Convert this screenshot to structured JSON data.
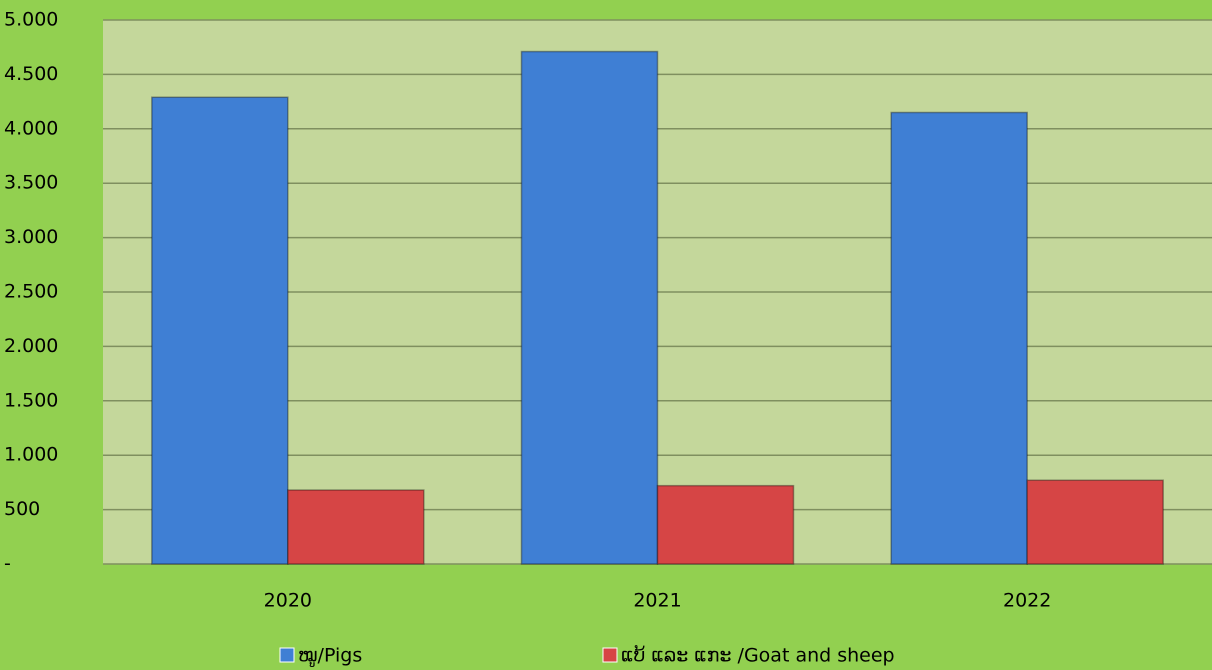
{
  "chart_data": {
    "type": "bar",
    "categories": [
      "2020",
      "2021",
      "2022"
    ],
    "series": [
      {
        "name": "ໝູ/Pigs",
        "color": "#3f7fd4",
        "values": [
          4290,
          4710,
          4150
        ]
      },
      {
        "name": "ແບ້ ແລະ ແກະ /Goat and sheep",
        "color": "#d64545",
        "values": [
          680,
          720,
          770
        ]
      }
    ],
    "ylim": [
      0,
      5000
    ],
    "yticks": [
      {
        "value": 0,
        "label": "-"
      },
      500,
      {
        "value": 1000,
        "label": "1.000"
      },
      {
        "value": 1500,
        "label": "1.500"
      },
      {
        "value": 2000,
        "label": "2.000"
      },
      {
        "value": 2500,
        "label": "2.500"
      },
      {
        "value": 3000,
        "label": "3.000"
      },
      {
        "value": 3500,
        "label": "3.500"
      },
      {
        "value": 4000,
        "label": "4.000"
      },
      {
        "value": 4500,
        "label": "4.500"
      },
      {
        "value": 5000,
        "label": "5.000"
      }
    ],
    "grid": true,
    "legend": "bottom"
  }
}
